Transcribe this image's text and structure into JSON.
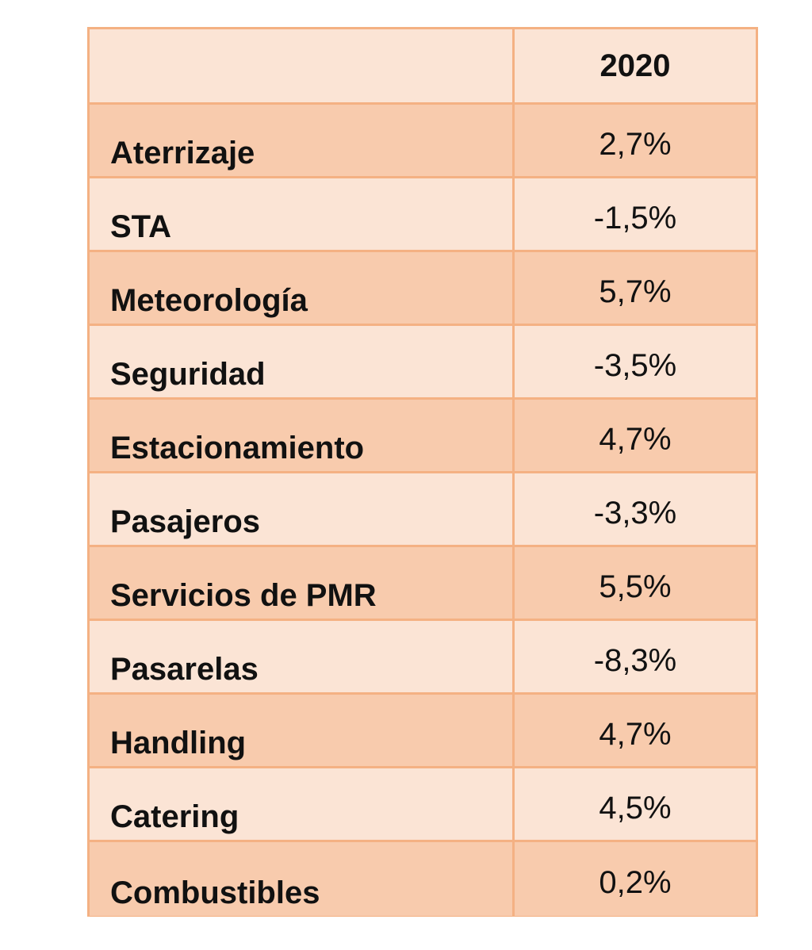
{
  "table": {
    "header": {
      "label": "",
      "year": "2020"
    },
    "rows": [
      {
        "label": "Aterrizaje",
        "value": "2,7%"
      },
      {
        "label": "STA",
        "value": "-1,5%"
      },
      {
        "label": "Meteorología",
        "value": "5,7%"
      },
      {
        "label": "Seguridad",
        "value": "-3,5%"
      },
      {
        "label": "Estacionamiento",
        "value": "4,7%"
      },
      {
        "label": "Pasajeros",
        "value": "-3,3%"
      },
      {
        "label": "Servicios de PMR",
        "value": "5,5%"
      },
      {
        "label": "Pasarelas",
        "value": "-8,3%"
      },
      {
        "label": "Handling",
        "value": "4,7%"
      },
      {
        "label": "Catering",
        "value": "4,5%"
      },
      {
        "label": "Combustibles",
        "value": "0,2%"
      }
    ],
    "colors": {
      "border": "#f4b183",
      "row_dark": "#f8cbad",
      "row_light": "#fbe4d5"
    }
  }
}
